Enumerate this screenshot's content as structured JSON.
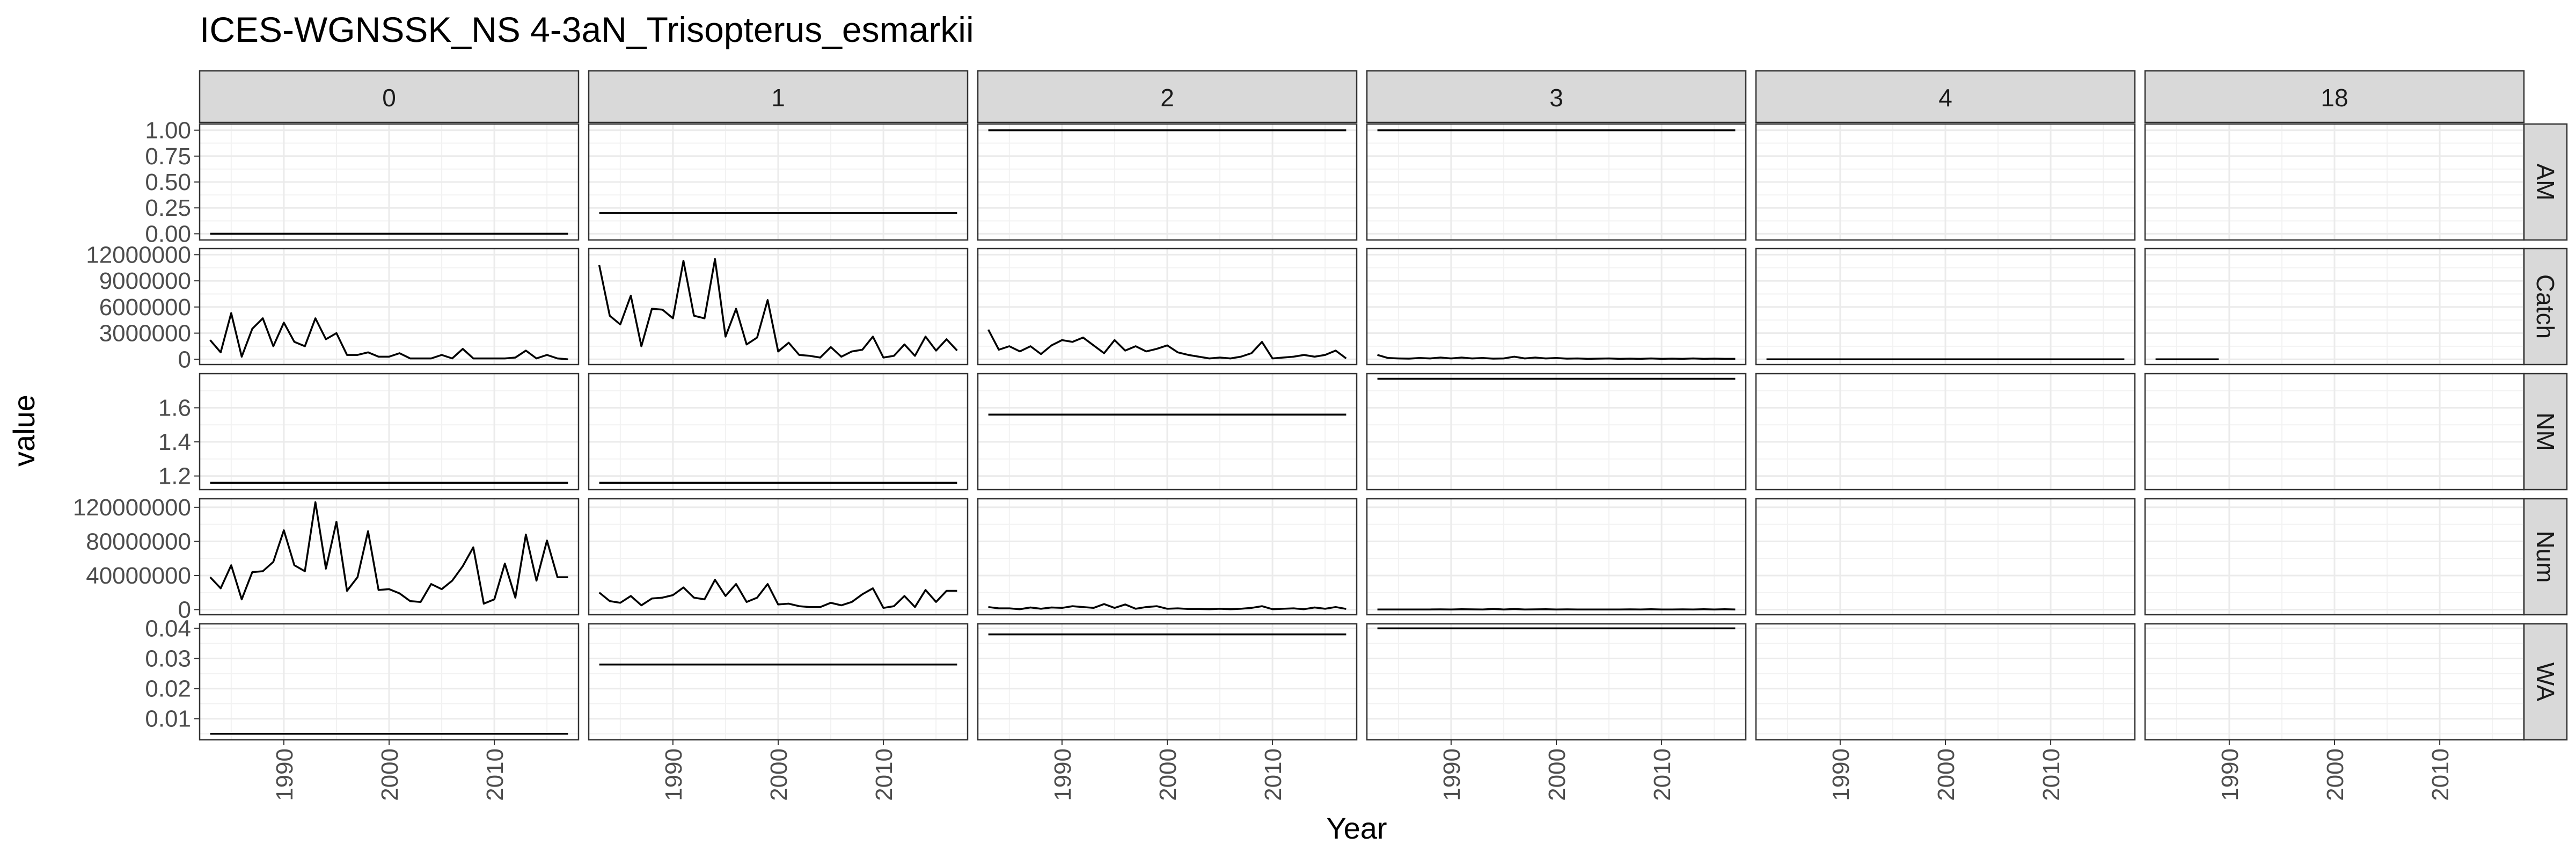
{
  "chart_data": {
    "type": "line",
    "title": "ICES-WGNSSK_NS 4-3aN_Trisopterus_esmarkii",
    "xlabel": "Year",
    "ylabel": "value",
    "grid": true,
    "xlim": [
      1982,
      2018
    ],
    "x_ticks": [
      1990,
      2000,
      2010
    ],
    "columns": [
      "0",
      "1",
      "2",
      "3",
      "4",
      "18"
    ],
    "rows": [
      {
        "label": "AM",
        "ylim": [
          -0.06,
          1.06
        ],
        "ticks": [
          0,
          0.25,
          0.5,
          0.75,
          1.0
        ],
        "tick_labels": [
          "0.00",
          "0.25",
          "0.50",
          "0.75",
          "1.00"
        ]
      },
      {
        "label": "Catch",
        "ylim": [
          -600000,
          12700000
        ],
        "ticks": [
          0,
          3000000,
          6000000,
          9000000,
          12000000
        ],
        "tick_labels": [
          "0",
          "3000000",
          "6000000",
          "9000000",
          "12000000"
        ]
      },
      {
        "label": "NM",
        "ylim": [
          1.12,
          1.8
        ],
        "ticks": [
          1.2,
          1.4,
          1.6
        ],
        "tick_labels": [
          "1.2",
          "1.4",
          "1.6"
        ]
      },
      {
        "label": "Num",
        "ylim": [
          -6000000,
          130000000
        ],
        "ticks": [
          0,
          40000000,
          80000000,
          120000000
        ],
        "tick_labels": [
          "0",
          "40000000",
          "80000000",
          "120000000"
        ]
      },
      {
        "label": "WA",
        "ylim": [
          0.003,
          0.0415
        ],
        "ticks": [
          0.01,
          0.02,
          0.03,
          0.04
        ],
        "tick_labels": [
          "0.01",
          "0.02",
          "0.03",
          "0.04"
        ]
      }
    ],
    "x": [
      1983,
      1984,
      1985,
      1986,
      1987,
      1988,
      1989,
      1990,
      1991,
      1992,
      1993,
      1994,
      1995,
      1996,
      1997,
      1998,
      1999,
      2000,
      2001,
      2002,
      2003,
      2004,
      2005,
      2006,
      2007,
      2008,
      2009,
      2010,
      2011,
      2012,
      2013,
      2014,
      2015,
      2016,
      2017
    ],
    "series": {
      "AM": {
        "0": [
          0,
          0,
          0,
          0,
          0,
          0,
          0,
          0,
          0,
          0,
          0,
          0,
          0,
          0,
          0,
          0,
          0,
          0,
          0,
          0,
          0,
          0,
          0,
          0,
          0,
          0,
          0,
          0,
          0,
          0,
          0,
          0,
          0,
          0,
          0
        ],
        "1": [
          0.2,
          0.2,
          0.2,
          0.2,
          0.2,
          0.2,
          0.2,
          0.2,
          0.2,
          0.2,
          0.2,
          0.2,
          0.2,
          0.2,
          0.2,
          0.2,
          0.2,
          0.2,
          0.2,
          0.2,
          0.2,
          0.2,
          0.2,
          0.2,
          0.2,
          0.2,
          0.2,
          0.2,
          0.2,
          0.2,
          0.2,
          0.2,
          0.2,
          0.2,
          0.2
        ],
        "2": [
          1,
          1,
          1,
          1,
          1,
          1,
          1,
          1,
          1,
          1,
          1,
          1,
          1,
          1,
          1,
          1,
          1,
          1,
          1,
          1,
          1,
          1,
          1,
          1,
          1,
          1,
          1,
          1,
          1,
          1,
          1,
          1,
          1,
          1,
          1
        ],
        "3": [
          1,
          1,
          1,
          1,
          1,
          1,
          1,
          1,
          1,
          1,
          1,
          1,
          1,
          1,
          1,
          1,
          1,
          1,
          1,
          1,
          1,
          1,
          1,
          1,
          1,
          1,
          1,
          1,
          1,
          1,
          1,
          1,
          1,
          1,
          1
        ]
      },
      "Catch": {
        "0": [
          2200000,
          800000,
          5300000,
          300000,
          3500000,
          4700000,
          1500000,
          4200000,
          2000000,
          1500000,
          4700000,
          2300000,
          3000000,
          500000,
          500000,
          800000,
          300000,
          300000,
          700000,
          100000,
          100000,
          100000,
          500000,
          100000,
          1200000,
          100000,
          100000,
          100000,
          100000,
          200000,
          1000000,
          100000,
          500000,
          100000,
          0
        ],
        "1": [
          10800000,
          5000000,
          4000000,
          7300000,
          1500000,
          5800000,
          5700000,
          4700000,
          11300000,
          5000000,
          4700000,
          11500000,
          2600000,
          5800000,
          1700000,
          2500000,
          6800000,
          900000,
          1900000,
          500000,
          400000,
          200000,
          1400000,
          300000,
          900000,
          1100000,
          2600000,
          200000,
          400000,
          1700000,
          400000,
          2600000,
          1000000,
          2300000,
          1000000
        ],
        "2": [
          3400000,
          1100000,
          1500000,
          900000,
          1500000,
          600000,
          1600000,
          2200000,
          2000000,
          2500000,
          1600000,
          700000,
          2200000,
          1000000,
          1500000,
          900000,
          1200000,
          1600000,
          800000,
          500000,
          300000,
          100000,
          200000,
          100000,
          300000,
          700000,
          2000000,
          100000,
          200000,
          300000,
          500000,
          300000,
          500000,
          1000000,
          100000
        ],
        "3": [
          500000,
          150000,
          100000,
          80000,
          150000,
          100000,
          200000,
          100000,
          200000,
          100000,
          150000,
          80000,
          100000,
          300000,
          100000,
          200000,
          100000,
          150000,
          80000,
          100000,
          50000,
          80000,
          100000,
          50000,
          80000,
          50000,
          100000,
          50000,
          80000,
          50000,
          100000,
          50000,
          80000,
          50000,
          50000
        ],
        "4": [
          0,
          0,
          0,
          0,
          0,
          0,
          0,
          0,
          0,
          0,
          0,
          0,
          0,
          0,
          0,
          0,
          0,
          0,
          0,
          0,
          0,
          0,
          0,
          0,
          0,
          0,
          0,
          0,
          0,
          0,
          0,
          0,
          0,
          0,
          0
        ],
        "18": [
          0,
          0,
          0,
          0,
          0,
          0,
          0,
          null,
          null,
          null,
          null,
          null,
          null,
          null,
          null,
          null,
          null,
          null,
          null,
          null,
          null,
          null,
          null,
          null,
          null,
          null,
          null,
          null,
          null,
          null,
          null,
          null,
          null,
          null,
          null
        ]
      },
      "NM": {
        "0": [
          1.16,
          1.16,
          1.16,
          1.16,
          1.16,
          1.16,
          1.16,
          1.16,
          1.16,
          1.16,
          1.16,
          1.16,
          1.16,
          1.16,
          1.16,
          1.16,
          1.16,
          1.16,
          1.16,
          1.16,
          1.16,
          1.16,
          1.16,
          1.16,
          1.16,
          1.16,
          1.16,
          1.16,
          1.16,
          1.16,
          1.16,
          1.16,
          1.16,
          1.16,
          1.16
        ],
        "1": [
          1.16,
          1.16,
          1.16,
          1.16,
          1.16,
          1.16,
          1.16,
          1.16,
          1.16,
          1.16,
          1.16,
          1.16,
          1.16,
          1.16,
          1.16,
          1.16,
          1.16,
          1.16,
          1.16,
          1.16,
          1.16,
          1.16,
          1.16,
          1.16,
          1.16,
          1.16,
          1.16,
          1.16,
          1.16,
          1.16,
          1.16,
          1.16,
          1.16,
          1.16,
          1.16
        ],
        "2": [
          1.56,
          1.56,
          1.56,
          1.56,
          1.56,
          1.56,
          1.56,
          1.56,
          1.56,
          1.56,
          1.56,
          1.56,
          1.56,
          1.56,
          1.56,
          1.56,
          1.56,
          1.56,
          1.56,
          1.56,
          1.56,
          1.56,
          1.56,
          1.56,
          1.56,
          1.56,
          1.56,
          1.56,
          1.56,
          1.56,
          1.56,
          1.56,
          1.56,
          1.56,
          1.56
        ],
        "3": [
          1.77,
          1.77,
          1.77,
          1.77,
          1.77,
          1.77,
          1.77,
          1.77,
          1.77,
          1.77,
          1.77,
          1.77,
          1.77,
          1.77,
          1.77,
          1.77,
          1.77,
          1.77,
          1.77,
          1.77,
          1.77,
          1.77,
          1.77,
          1.77,
          1.77,
          1.77,
          1.77,
          1.77,
          1.77,
          1.77,
          1.77,
          1.77,
          1.77,
          1.77,
          1.77
        ]
      },
      "Num": {
        "0": [
          38000000,
          25000000,
          52000000,
          12000000,
          44000000,
          45000000,
          56000000,
          93000000,
          52000000,
          45000000,
          126000000,
          48000000,
          103000000,
          22000000,
          38000000,
          92000000,
          23000000,
          24000000,
          19000000,
          10000000,
          9000000,
          30000000,
          24000000,
          34000000,
          51000000,
          73000000,
          7000000,
          12000000,
          54000000,
          14000000,
          88000000,
          34000000,
          81000000,
          38000000,
          38000000
        ],
        "1": [
          20000000,
          10000000,
          8000000,
          16000000,
          5000000,
          13000000,
          14000000,
          17000000,
          26000000,
          14000000,
          12000000,
          35000000,
          16000000,
          30000000,
          9000000,
          14000000,
          30000000,
          6000000,
          7000000,
          4000000,
          3000000,
          3000000,
          8000000,
          5000000,
          9000000,
          18000000,
          25000000,
          2000000,
          4000000,
          16000000,
          3000000,
          23000000,
          9000000,
          22000000,
          22000000
        ],
        "2": [
          3000000,
          1500000,
          1500000,
          500000,
          2500000,
          1000000,
          2500000,
          2000000,
          4000000,
          3000000,
          2000000,
          6500000,
          2000000,
          6000000,
          1000000,
          3000000,
          4000000,
          1000000,
          1500000,
          800000,
          800000,
          400000,
          1000000,
          500000,
          1000000,
          2000000,
          4000000,
          500000,
          1000000,
          1500000,
          500000,
          2500000,
          1000000,
          3000000,
          800000
        ],
        "3": [
          200000,
          100000,
          150000,
          100000,
          200000,
          150000,
          300000,
          200000,
          500000,
          300000,
          200000,
          800000,
          200000,
          700000,
          200000,
          300000,
          500000,
          200000,
          300000,
          100000,
          100000,
          100000,
          200000,
          100000,
          300000,
          200000,
          500000,
          100000,
          200000,
          300000,
          100000,
          500000,
          200000,
          400000,
          200000
        ]
      },
      "WA": {
        "0": [
          0.005,
          0.005,
          0.005,
          0.005,
          0.005,
          0.005,
          0.005,
          0.005,
          0.005,
          0.005,
          0.005,
          0.005,
          0.005,
          0.005,
          0.005,
          0.005,
          0.005,
          0.005,
          0.005,
          0.005,
          0.005,
          0.005,
          0.005,
          0.005,
          0.005,
          0.005,
          0.005,
          0.005,
          0.005,
          0.005,
          0.005,
          0.005,
          0.005,
          0.005,
          0.005
        ],
        "1": [
          0.028,
          0.028,
          0.028,
          0.028,
          0.028,
          0.028,
          0.028,
          0.028,
          0.028,
          0.028,
          0.028,
          0.028,
          0.028,
          0.028,
          0.028,
          0.028,
          0.028,
          0.028,
          0.028,
          0.028,
          0.028,
          0.028,
          0.028,
          0.028,
          0.028,
          0.028,
          0.028,
          0.028,
          0.028,
          0.028,
          0.028,
          0.028,
          0.028,
          0.028,
          0.028
        ],
        "2": [
          0.038,
          0.038,
          0.038,
          0.038,
          0.038,
          0.038,
          0.038,
          0.038,
          0.038,
          0.038,
          0.038,
          0.038,
          0.038,
          0.038,
          0.038,
          0.038,
          0.038,
          0.038,
          0.038,
          0.038,
          0.038,
          0.038,
          0.038,
          0.038,
          0.038,
          0.038,
          0.038,
          0.038,
          0.038,
          0.038,
          0.038,
          0.038,
          0.038,
          0.038,
          0.038
        ],
        "3": [
          0.04,
          0.04,
          0.04,
          0.04,
          0.04,
          0.04,
          0.04,
          0.04,
          0.04,
          0.04,
          0.04,
          0.04,
          0.04,
          0.04,
          0.04,
          0.04,
          0.04,
          0.04,
          0.04,
          0.04,
          0.04,
          0.04,
          0.04,
          0.04,
          0.04,
          0.04,
          0.04,
          0.04,
          0.04,
          0.04,
          0.04,
          0.04,
          0.04,
          0.04,
          0.04
        ]
      }
    }
  }
}
